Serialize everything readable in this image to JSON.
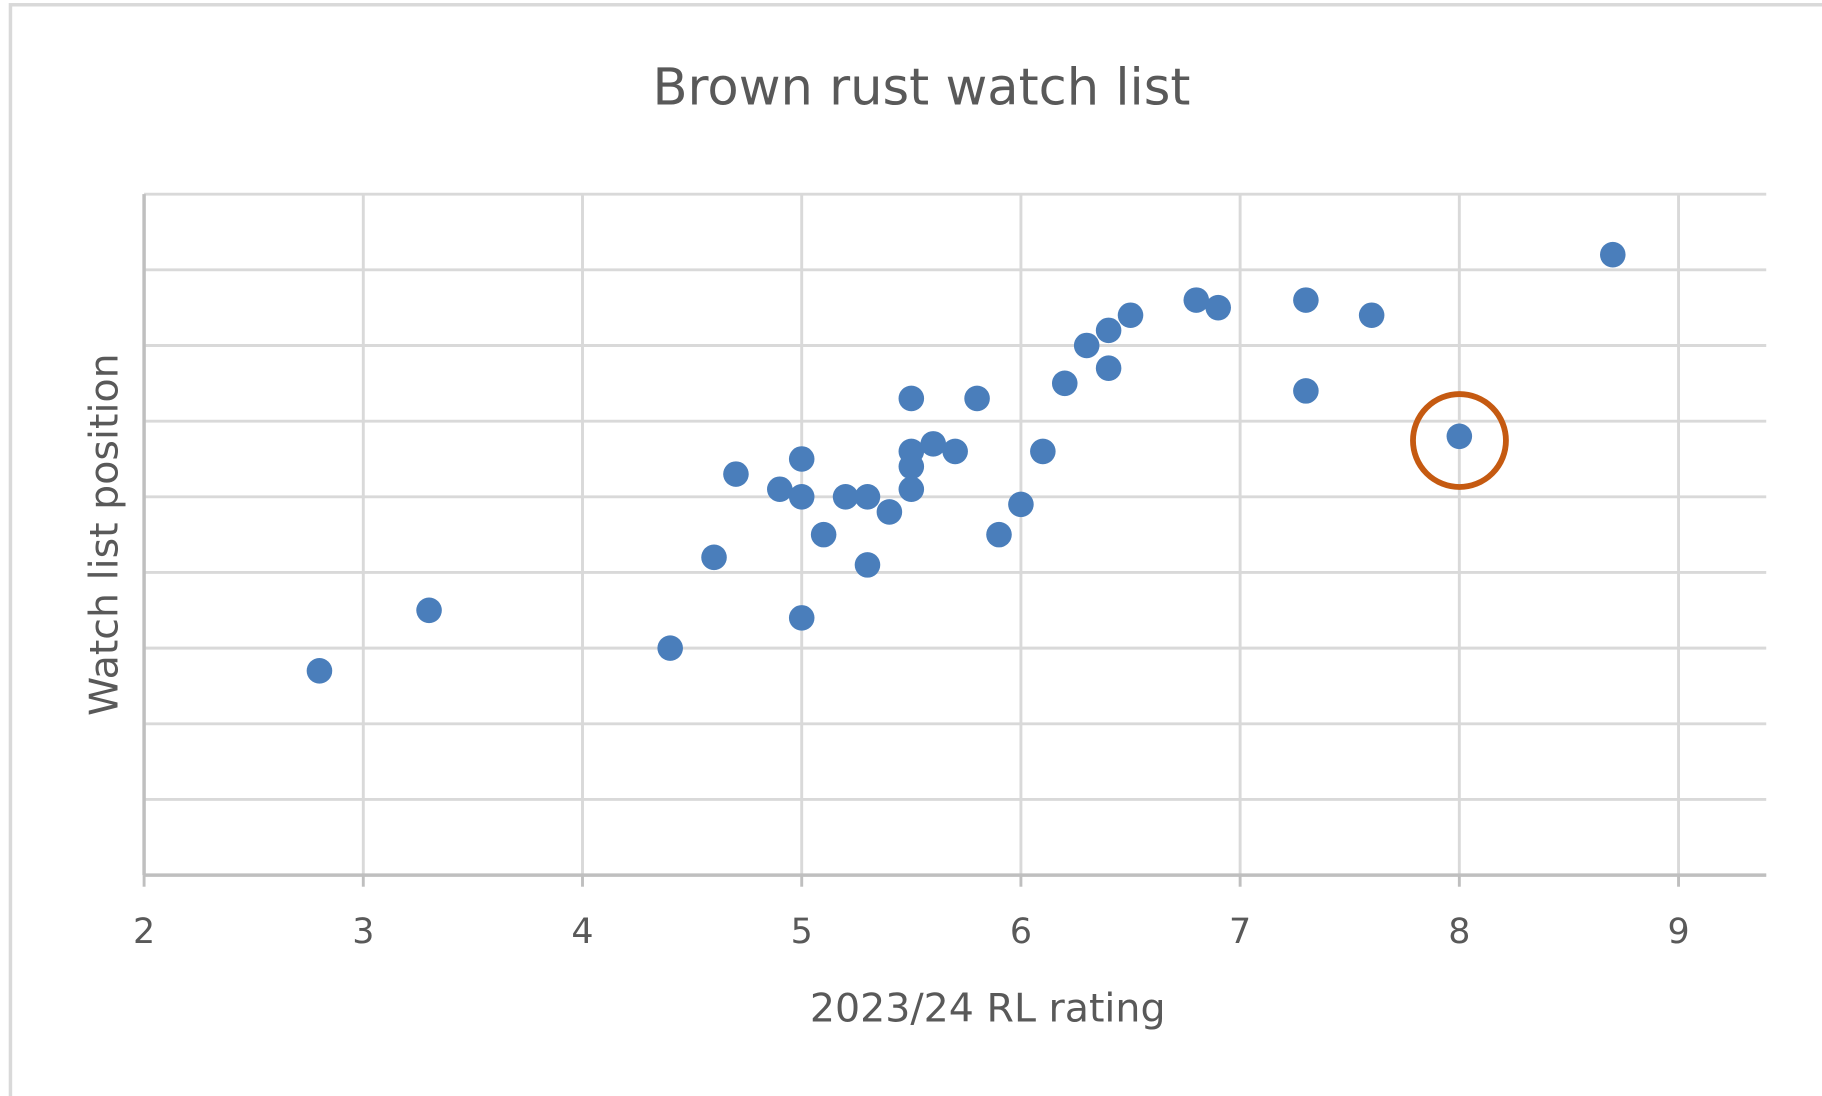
{
  "chart_data": {
    "type": "scatter",
    "title": "Brown rust watch list",
    "x_label": "2023/24 RL rating",
    "y_label": "Watch list position",
    "x": [
      2.8,
      3.3,
      4.4,
      4.6,
      4.7,
      4.9,
      5.0,
      5.0,
      5.0,
      5.1,
      5.2,
      5.3,
      5.3,
      5.4,
      5.5,
      5.5,
      5.5,
      5.5,
      5.6,
      5.7,
      5.8,
      5.9,
      6.0,
      6.1,
      6.2,
      6.3,
      6.4,
      6.4,
      6.5,
      6.8,
      6.9,
      7.3,
      7.3,
      7.6,
      8.0,
      8.7
    ],
    "values": [
      2.7,
      3.5,
      3.0,
      4.2,
      5.3,
      5.1,
      5.5,
      5.0,
      3.4,
      4.5,
      5.0,
      5.0,
      4.1,
      4.8,
      6.3,
      5.6,
      5.4,
      5.1,
      5.7,
      5.6,
      6.3,
      4.5,
      4.9,
      5.6,
      6.5,
      7.0,
      7.2,
      6.7,
      7.4,
      7.6,
      7.5,
      7.6,
      6.4,
      7.4,
      5.8,
      8.2
    ],
    "color": "#4a7ebb",
    "xlim": [
      2,
      9.4
    ],
    "xticks": [
      2,
      3,
      4,
      5,
      6,
      7,
      8,
      9
    ],
    "ylim": [
      0,
      9
    ],
    "yticks": [
      0,
      1,
      2,
      3,
      4,
      5,
      6,
      7,
      8,
      9
    ],
    "grid": true
  }
}
